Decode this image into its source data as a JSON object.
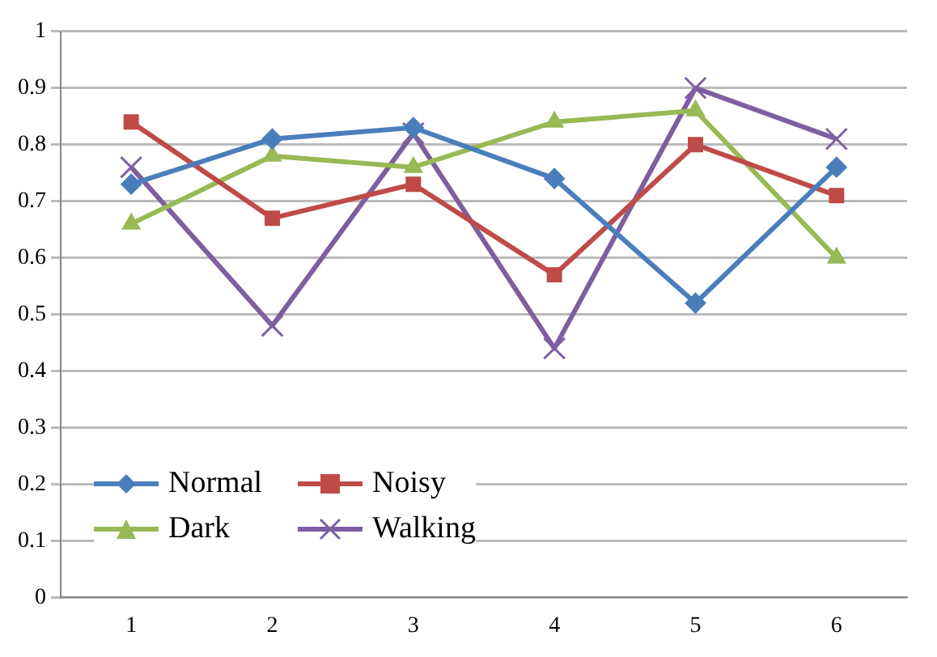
{
  "chart_data": {
    "type": "line",
    "categories": [
      "1",
      "2",
      "3",
      "4",
      "5",
      "6"
    ],
    "series": [
      {
        "name": "Normal",
        "color": "#4a7ebb",
        "marker": "diamond",
        "values": [
          0.73,
          0.81,
          0.83,
          0.74,
          0.52,
          0.76
        ]
      },
      {
        "name": "Noisy",
        "color": "#be4b48",
        "marker": "square",
        "values": [
          0.84,
          0.67,
          0.73,
          0.57,
          0.8,
          0.71
        ]
      },
      {
        "name": "Dark",
        "color": "#98b954",
        "marker": "triangle",
        "values": [
          0.66,
          0.78,
          0.76,
          0.84,
          0.86,
          0.6
        ]
      },
      {
        "name": "Walking",
        "color": "#7d5fa0",
        "marker": "cross",
        "values": [
          0.76,
          0.48,
          0.82,
          0.44,
          0.9,
          0.81
        ]
      }
    ],
    "ylim": [
      0,
      1
    ],
    "yticks": [
      0,
      {
        "value": 0.1,
        "label": "0.1"
      },
      {
        "value": 0.2,
        "label": "0.2"
      },
      {
        "value": 0.3,
        "label": "0.3"
      },
      {
        "value": 0.4,
        "label": "0.4"
      },
      {
        "value": 0.5,
        "label": "0.5"
      },
      {
        "value": 0.6,
        "label": "0.6"
      },
      {
        "value": 0.7,
        "label": "0.7"
      },
      {
        "value": 0.8,
        "label": "0.8"
      },
      {
        "value": 0.9,
        "label": "0.9"
      },
      1
    ],
    "grid": "y",
    "legend": "bottom left",
    "line_style": "solid"
  }
}
